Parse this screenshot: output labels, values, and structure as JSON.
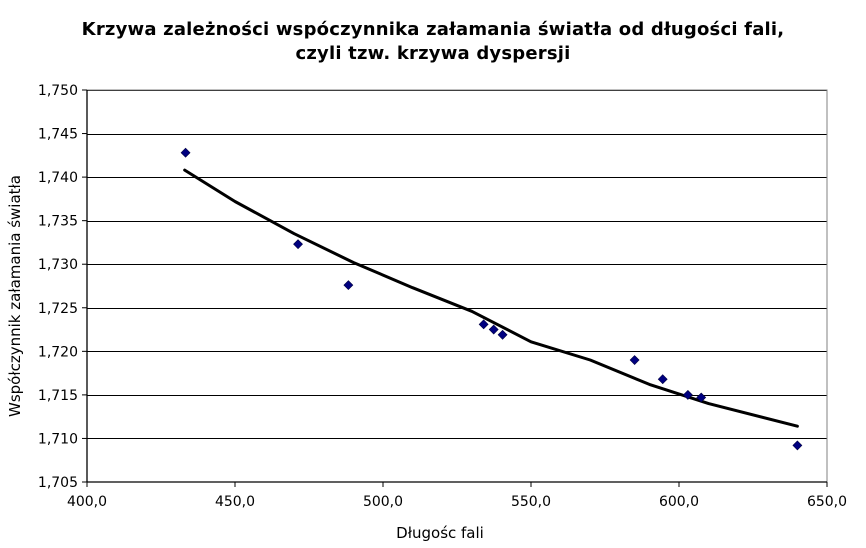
{
  "chart_data": {
    "type": "scatter",
    "title_line1": "Krzywa zależności wspóczynnika załamania światła od  długości fali,",
    "title_line2": "czyli tzw. krzywa dyspersji",
    "xlabel": "Długośc fali",
    "ylabel": "Współczynnik załamania światła",
    "xlim": [
      400,
      650
    ],
    "ylim": [
      1.705,
      1.75
    ],
    "x_ticks": [
      400,
      450,
      500,
      550,
      600,
      650
    ],
    "y_ticks": [
      1.705,
      1.71,
      1.715,
      1.72,
      1.725,
      1.73,
      1.735,
      1.74,
      1.745,
      1.75
    ],
    "x_tick_labels": [
      "400,0",
      "450,0",
      "500,0",
      "550,0",
      "600,0",
      "650,0"
    ],
    "y_tick_labels": [
      "1,705",
      "1,710",
      "1,715",
      "1,720",
      "1,725",
      "1,730",
      "1,735",
      "1,740",
      "1,745",
      "1,750"
    ],
    "grid": "horizontal",
    "legend": "none",
    "series": [
      {
        "kind": "points",
        "marker": "diamond",
        "color": "#000080",
        "x": [
          433.3,
          471.3,
          488.3,
          534.0,
          537.4,
          540.4,
          585.0,
          594.5,
          603.0,
          607.5,
          640.0
        ],
        "y": [
          1.7428,
          1.7323,
          1.7276,
          1.7231,
          1.7225,
          1.7219,
          1.719,
          1.7168,
          1.715,
          1.7147,
          1.7092
        ]
      },
      {
        "kind": "trendline",
        "color": "#000000",
        "x": [
          433,
          450,
          470,
          490,
          510,
          530,
          550,
          570,
          590,
          610,
          640
        ],
        "y": [
          1.7408,
          1.7372,
          1.7335,
          1.7302,
          1.7273,
          1.7246,
          1.7211,
          1.719,
          1.7162,
          1.714,
          1.7114
        ]
      }
    ]
  }
}
